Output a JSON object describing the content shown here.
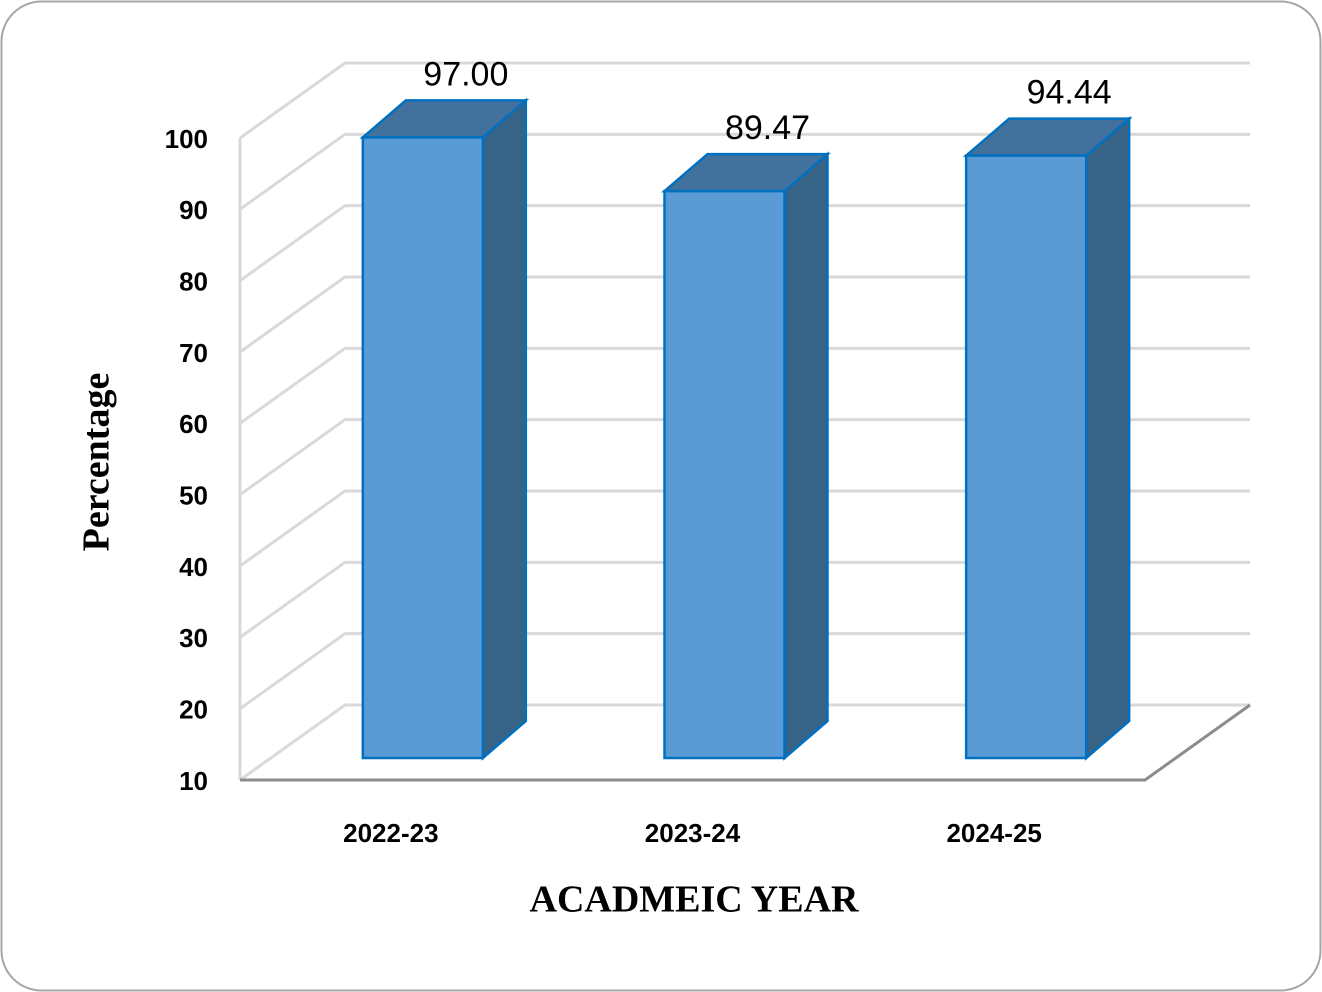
{
  "chart_data": {
    "type": "bar3d",
    "y_label": "Percentage",
    "x_label": "ACADMEIC YEAR",
    "categories": [
      "2022-23",
      "2023-24",
      "2024-25"
    ],
    "values": [
      97,
      89.47,
      94.44
    ],
    "value_labels": [
      "97.00",
      "89.47",
      "94.44"
    ],
    "color": "#5b9bd5",
    "ylim": [
      10,
      100
    ],
    "yticks": [
      10,
      20,
      30,
      40,
      50,
      60,
      70,
      80,
      90,
      100
    ],
    "grid": true
  }
}
